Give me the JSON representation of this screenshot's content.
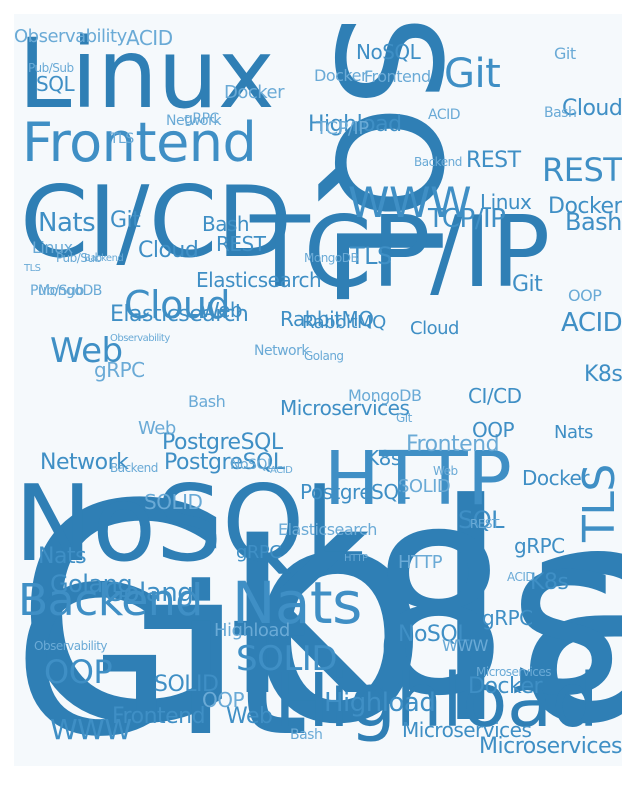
{
  "palette": {
    "background": "#f5f9fc",
    "dark": "#2f7fb5",
    "mid": "#3f8fc5",
    "light": "#6aaad6"
  },
  "words": [
    {
      "text": "Golang"
    },
    {
      "text": "K8s"
    },
    {
      "text": "Git"
    },
    {
      "text": "SQL"
    },
    {
      "text": "NoSQL"
    },
    {
      "text": "Linux"
    },
    {
      "text": "CI/CD"
    },
    {
      "text": "TCP/IP"
    },
    {
      "text": "Highload"
    },
    {
      "text": "Frontend"
    },
    {
      "text": "HTTP"
    },
    {
      "text": "Backend"
    },
    {
      "text": "Nats"
    },
    {
      "text": "WWW"
    },
    {
      "text": "Cloud"
    },
    {
      "text": "Web"
    },
    {
      "text": "SOLID"
    },
    {
      "text": "OOP"
    },
    {
      "text": "REST"
    },
    {
      "text": "TLS"
    },
    {
      "text": "Bash"
    },
    {
      "text": "Network"
    },
    {
      "text": "PostgreSQL"
    },
    {
      "text": "Elasticsearch"
    },
    {
      "text": "RabbitMQ"
    },
    {
      "text": "Docker"
    },
    {
      "text": "ACID"
    },
    {
      "text": "MongoDB"
    },
    {
      "text": "Pub/Sub"
    },
    {
      "text": "gRPC"
    },
    {
      "text": "Observability"
    },
    {
      "text": "Microservices"
    },
    {
      "text": "Git"
    },
    {
      "text": "ACID"
    },
    {
      "text": "Observability"
    },
    {
      "text": "NoSQL"
    },
    {
      "text": "Frontend"
    },
    {
      "text": "Highload"
    },
    {
      "text": "SQL"
    },
    {
      "text": "Pub/Sub"
    },
    {
      "text": "Network"
    },
    {
      "text": "Golang"
    },
    {
      "text": "Backend"
    },
    {
      "text": "TLS"
    },
    {
      "text": "Cloud"
    },
    {
      "text": "Docker"
    },
    {
      "text": "REST"
    },
    {
      "text": "Git"
    },
    {
      "text": "Bash"
    },
    {
      "text": "Nats"
    },
    {
      "text": "K8s"
    },
    {
      "text": "TCP/IP"
    },
    {
      "text": "Pub/Sub"
    },
    {
      "text": "gRPC"
    },
    {
      "text": "Docker"
    },
    {
      "text": "ACID"
    },
    {
      "text": "Linux"
    },
    {
      "text": "OOP"
    },
    {
      "text": "SOLID"
    },
    {
      "text": "gRPC"
    },
    {
      "text": "K8s"
    },
    {
      "text": "Nats"
    },
    {
      "text": "Docker"
    },
    {
      "text": "Git"
    },
    {
      "text": "Web"
    },
    {
      "text": "Bash"
    },
    {
      "text": "Web"
    },
    {
      "text": "Microservices"
    },
    {
      "text": "Elasticsearch"
    },
    {
      "text": "Backend"
    },
    {
      "text": "MongoDB"
    },
    {
      "text": "TLS"
    },
    {
      "text": "PostgreSQL"
    },
    {
      "text": "gRPC"
    },
    {
      "text": "RabbitMQ"
    },
    {
      "text": "Linux"
    },
    {
      "text": "HTTP"
    },
    {
      "text": "Golang"
    },
    {
      "text": "NoSQL"
    },
    {
      "text": "OOP"
    },
    {
      "text": "SOLID"
    },
    {
      "text": "WWW"
    },
    {
      "text": "Highload"
    },
    {
      "text": "Microservices"
    },
    {
      "text": "REST"
    },
    {
      "text": "Cloud"
    },
    {
      "text": "Web"
    },
    {
      "text": "Git"
    },
    {
      "text": "Golang"
    },
    {
      "text": "Observability"
    },
    {
      "text": "Frontend"
    },
    {
      "text": "PostgreSQL"
    },
    {
      "text": "Network"
    },
    {
      "text": "HTTP"
    },
    {
      "text": "Elasticsearch"
    },
    {
      "text": "Backend"
    },
    {
      "text": "Bash"
    },
    {
      "text": "Nats"
    },
    {
      "text": "ACID"
    },
    {
      "text": "SQL"
    },
    {
      "text": "Frontend"
    },
    {
      "text": "SOLID"
    },
    {
      "text": "Microservices"
    },
    {
      "text": "OOP"
    },
    {
      "text": "Highload"
    },
    {
      "text": "Docker"
    },
    {
      "text": "TLS"
    },
    {
      "text": "TCP/IP"
    },
    {
      "text": "K8s"
    },
    {
      "text": "WWW"
    },
    {
      "text": "Cloud"
    },
    {
      "text": "CI/CD"
    },
    {
      "text": "Bash"
    },
    {
      "text": "MongoDB"
    },
    {
      "text": "gRPC"
    },
    {
      "text": "NoSQL"
    },
    {
      "text": "Git"
    },
    {
      "text": "Web"
    },
    {
      "text": "REST"
    },
    {
      "text": "ACID"
    }
  ]
}
